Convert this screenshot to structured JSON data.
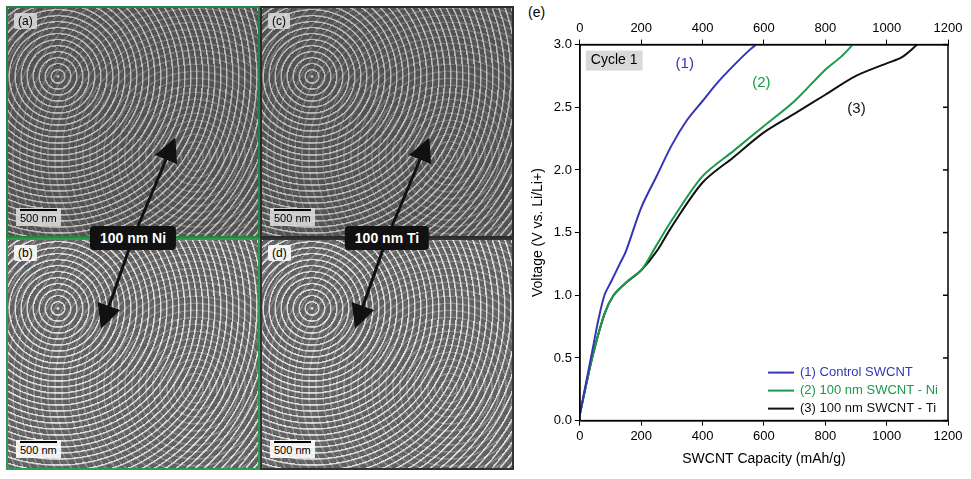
{
  "panels": [
    {
      "letter": "(a)",
      "scale_bar": "500 nm"
    },
    {
      "letter": "(b)",
      "scale_bar": "500 nm"
    },
    {
      "letter": "(c)",
      "scale_bar": "500 nm"
    },
    {
      "letter": "(d)",
      "scale_bar": "500 nm"
    }
  ],
  "film_labels": [
    "100 nm Ni",
    "100 nm Ti"
  ],
  "chart_data": {
    "type": "line",
    "title": "(e)",
    "annotations": [
      "Cycle 1"
    ],
    "x_label": "SWCNT Capacity (mAh/g)",
    "y_label": "Voltage (V vs. Li/Li+)",
    "xlim": [
      0,
      1200
    ],
    "xticks": [
      0,
      200,
      400,
      600,
      800,
      1000,
      1200
    ],
    "ylim": [
      0,
      3.0
    ],
    "yticks": [
      {
        "value": 0,
        "label": "0.0"
      },
      0.5,
      {
        "value": 1,
        "label": "1.0"
      },
      1.5,
      {
        "value": 2,
        "label": "2.0"
      },
      2.5,
      {
        "value": 3,
        "label": "3.0"
      }
    ],
    "grid": false,
    "legend": "lower right",
    "series": [
      {
        "name": "(1) Control SWCNT",
        "label": "(1)",
        "color": "#3535b5",
        "x": [
          0,
          20,
          40,
          60,
          80,
          100,
          130,
          150,
          200,
          250,
          300,
          350,
          400,
          450,
          500,
          550,
          575
        ],
        "values": [
          0.05,
          0.3,
          0.55,
          0.8,
          1.0,
          1.1,
          1.25,
          1.35,
          1.7,
          1.95,
          2.2,
          2.4,
          2.55,
          2.7,
          2.83,
          2.95,
          3.0
        ]
      },
      {
        "name": "(2) 100 nm SWCNT - Ni",
        "label": "(2)",
        "color": "#1a9a4a",
        "x": [
          0,
          40,
          80,
          110,
          150,
          200,
          250,
          300,
          400,
          500,
          600,
          700,
          800,
          850,
          890
        ],
        "values": [
          0.05,
          0.5,
          0.85,
          1.0,
          1.1,
          1.2,
          1.4,
          1.6,
          1.95,
          2.15,
          2.35,
          2.55,
          2.8,
          2.9,
          3.0
        ]
      },
      {
        "name": "(3) 100 nm SWCNT - Ti",
        "label": "(3)",
        "color": "#111111",
        "x": [
          0,
          40,
          80,
          110,
          150,
          200,
          250,
          300,
          400,
          500,
          600,
          700,
          800,
          900,
          1000,
          1050,
          1100
        ],
        "values": [
          0.05,
          0.5,
          0.85,
          1.0,
          1.1,
          1.2,
          1.35,
          1.55,
          1.9,
          2.1,
          2.3,
          2.45,
          2.6,
          2.75,
          2.85,
          2.9,
          3.0
        ]
      }
    ]
  }
}
